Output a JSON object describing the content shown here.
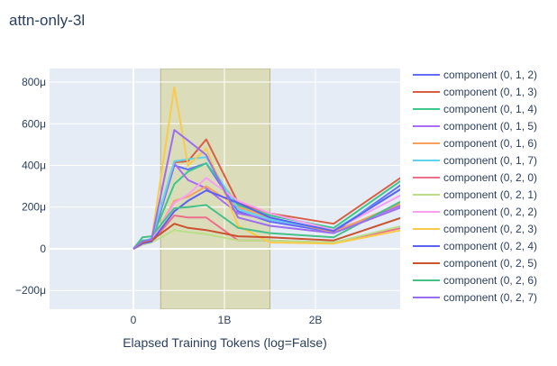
{
  "chart_data": {
    "type": "line",
    "title": "attn-only-3l",
    "xlabel": "Elapsed Training Tokens (log=False)",
    "ylabel": "",
    "xlim": [
      -0.92,
      2.93
    ],
    "ylim": [
      -290,
      865
    ],
    "x_ticks": [
      {
        "value": 0,
        "label": "0"
      },
      {
        "value": 1,
        "label": "1B"
      },
      {
        "value": 2,
        "label": "2B"
      }
    ],
    "y_ticks": [
      {
        "value": -200,
        "label": "−200μ"
      },
      {
        "value": 0,
        "label": "0"
      },
      {
        "value": 200,
        "label": "200μ"
      },
      {
        "value": 400,
        "label": "400μ"
      },
      {
        "value": 600,
        "label": "600μ"
      },
      {
        "value": 800,
        "label": "800μ"
      }
    ],
    "highlight_region": {
      "x0": 0.3,
      "x1": 1.5,
      "color": "#d4d088"
    },
    "grid": true,
    "legend_position": "right",
    "x": [
      0,
      0.1,
      0.2,
      0.45,
      0.6,
      0.8,
      1.15,
      1.5,
      2.2,
      2.95
    ],
    "series": [
      {
        "name": "component (0, 1, 2)",
        "color": "#636efa",
        "values": [
          0,
          30,
          35,
          400,
          380,
          410,
          180,
          130,
          80,
          310
        ]
      },
      {
        "name": "component (0, 1, 3)",
        "color": "#d95f43",
        "values": [
          0,
          25,
          40,
          415,
          420,
          525,
          220,
          170,
          120,
          345
        ]
      },
      {
        "name": "component (0, 1, 4)",
        "color": "#3cc88c",
        "values": [
          0,
          40,
          45,
          310,
          370,
          410,
          210,
          160,
          100,
          330
        ]
      },
      {
        "name": "component (0, 1, 5)",
        "color": "#a86cf2",
        "values": [
          0,
          30,
          45,
          410,
          330,
          290,
          170,
          140,
          85,
          210
        ]
      },
      {
        "name": "component (0, 1, 6)",
        "color": "#f6a25e",
        "values": [
          0,
          20,
          35,
          230,
          250,
          300,
          200,
          150,
          80,
          220
        ]
      },
      {
        "name": "component (0, 1, 7)",
        "color": "#61d3ef",
        "values": [
          0,
          35,
          50,
          420,
          430,
          440,
          190,
          140,
          90,
          290
        ]
      },
      {
        "name": "component (0, 2, 0)",
        "color": "#ef6f8b",
        "values": [
          0,
          20,
          30,
          160,
          150,
          150,
          40,
          40,
          30,
          100
        ]
      },
      {
        "name": "component (0, 2, 1)",
        "color": "#b9e088",
        "values": [
          0,
          20,
          30,
          90,
          80,
          70,
          40,
          40,
          30,
          110
        ]
      },
      {
        "name": "component (0, 2, 2)",
        "color": "#f89ff0",
        "values": [
          0,
          25,
          40,
          220,
          260,
          340,
          230,
          170,
          90,
          260
        ]
      },
      {
        "name": "component (0, 2, 3)",
        "color": "#f9cb4c",
        "values": [
          0,
          30,
          45,
          775,
          400,
          480,
          110,
          30,
          25,
          90
        ]
      },
      {
        "name": "component (0, 2, 4)",
        "color": "#5b62f0",
        "values": [
          0,
          25,
          35,
          180,
          230,
          280,
          220,
          150,
          85,
          290
        ]
      },
      {
        "name": "component (0, 2, 5)",
        "color": "#c8532e",
        "values": [
          0,
          30,
          40,
          120,
          100,
          90,
          60,
          55,
          40,
          150
        ]
      },
      {
        "name": "component (0, 2, 6)",
        "color": "#47c088",
        "values": [
          0,
          55,
          60,
          195,
          200,
          210,
          100,
          75,
          55,
          230
        ]
      },
      {
        "name": "component (0, 2, 7)",
        "color": "#9b6ef0",
        "values": [
          0,
          35,
          45,
          570,
          520,
          450,
          150,
          110,
          75,
          200
        ]
      }
    ]
  }
}
